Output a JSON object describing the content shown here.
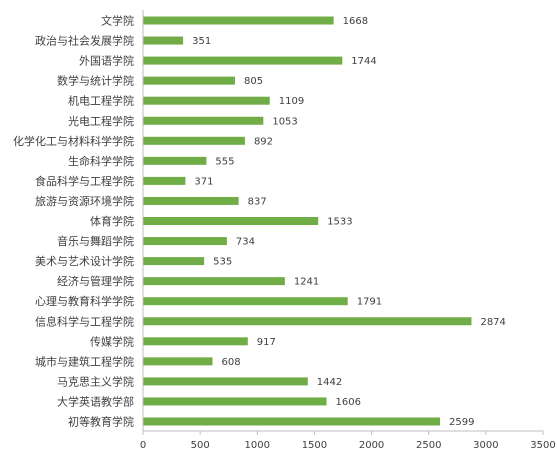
{
  "chart_data": {
    "type": "bar",
    "orientation": "horizontal",
    "title": "",
    "xlabel": "",
    "ylabel": "",
    "bar_color": "#70AD47",
    "grid": false,
    "xlim": [
      0,
      3500
    ],
    "xticks": [
      0,
      500,
      1000,
      1500,
      2000,
      2500,
      3000,
      3500
    ],
    "categories": [
      "文学院",
      "政治与社会发展学院",
      "外国语学院",
      "数学与统计学院",
      "机电工程学院",
      "光电工程学院",
      "化学化工与材料科学学院",
      "生命科学学院",
      "食品科学与工程学院",
      "旅游与资源环境学院",
      "体育学院",
      "音乐与舞蹈学院",
      "美术与艺术设计学院",
      "经济与管理学院",
      "心理与教育科学学院",
      "信息科学与工程学院",
      "传媒学院",
      "城市与建筑工程学院",
      "马克思主义学院",
      "大学英语教学部",
      "初等教育学院"
    ],
    "values": [
      1668,
      351,
      1744,
      805,
      1109,
      1053,
      892,
      555,
      371,
      837,
      1533,
      734,
      535,
      1241,
      1791,
      2874,
      917,
      608,
      1442,
      1606,
      2599
    ]
  }
}
